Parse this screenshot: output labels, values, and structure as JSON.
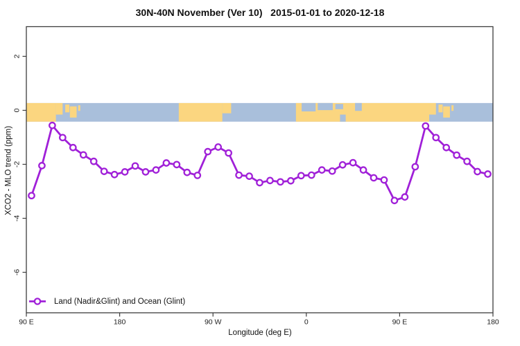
{
  "chart_data": {
    "type": "line",
    "title": "30N-40N November (Ver 10)   2015-01-01 to 2020-12-18",
    "xlabel": "Longitude (deg E)",
    "ylabel": "XCO2 - MLO trend (ppm)",
    "xlim": [
      90,
      540
    ],
    "ylim": [
      -7.5,
      3.1
    ],
    "grid": false,
    "x_ticks": [
      {
        "value": 90,
        "label": "90 E"
      },
      {
        "value": 180,
        "label": "180"
      },
      {
        "value": 270,
        "label": "90 W"
      },
      {
        "value": 360,
        "label": "0"
      },
      {
        "value": 450,
        "label": "90 E"
      },
      {
        "value": 540,
        "label": "180"
      }
    ],
    "y_ticks": [
      {
        "value": 2,
        "label": "2"
      },
      {
        "value": 0,
        "label": "0"
      },
      {
        "value": -2,
        "label": "-2"
      },
      {
        "value": -4,
        "label": "-4"
      },
      {
        "value": -6,
        "label": "-6"
      }
    ],
    "legend": [
      {
        "label": "Land (Nadir&Glint) and Ocean (Glint)",
        "color": "#A020D8",
        "marker": "open-circle",
        "position": "bottom-left"
      }
    ],
    "series": [
      {
        "name": "Land (Nadir&Glint) and Ocean (Glint)",
        "color": "#A020D8",
        "x": [
          95,
          105,
          115,
          125,
          135,
          145,
          155,
          165,
          175,
          185,
          195,
          205,
          215,
          225,
          235,
          245,
          255,
          265,
          275,
          285,
          295,
          305,
          315,
          325,
          335,
          345,
          355,
          365,
          375,
          385,
          395,
          405,
          415,
          425,
          435,
          445,
          455,
          465,
          475,
          485,
          495,
          505,
          515,
          525,
          535
        ],
        "y": [
          -3.16,
          -2.05,
          -0.56,
          -1.01,
          -1.38,
          -1.65,
          -1.89,
          -2.26,
          -2.38,
          -2.28,
          -2.06,
          -2.28,
          -2.21,
          -1.95,
          -2.01,
          -2.3,
          -2.41,
          -1.53,
          -1.36,
          -1.58,
          -2.4,
          -2.44,
          -2.68,
          -2.6,
          -2.65,
          -2.61,
          -2.42,
          -2.4,
          -2.21,
          -2.25,
          -2.02,
          -1.94,
          -2.21,
          -2.5,
          -2.58,
          -3.34,
          -3.21,
          -2.09,
          -0.58,
          -1.01,
          -1.38,
          -1.66,
          -1.89,
          -2.27,
          -2.36
        ]
      }
    ],
    "map_band": {
      "description": "land-ocean strip along longitude centered near 0 ppm",
      "top_value": 0.27,
      "bottom_value": -0.42,
      "ocean_color": "#A9BFDB",
      "land_color": "#FBD680",
      "land_segments": [
        {
          "x0": 90,
          "x1": 118.5,
          "f0": 0,
          "f1": 1
        },
        {
          "x0": 118.5,
          "x1": 125,
          "f0": 0,
          "f1": 0.62
        },
        {
          "x0": 127.5,
          "x1": 131.5,
          "f0": 0.08,
          "f1": 0.5
        },
        {
          "x0": 132,
          "x1": 138.5,
          "f0": 0.18,
          "f1": 0.78
        },
        {
          "x0": 140,
          "x1": 142,
          "f0": 0.12,
          "f1": 0.42
        },
        {
          "x0": 237,
          "x1": 279,
          "f0": 0,
          "f1": 1
        },
        {
          "x0": 279,
          "x1": 287.5,
          "f0": 0,
          "f1": 0.55
        },
        {
          "x0": 350,
          "x1": 478.5,
          "f0": 0,
          "f1": 1
        },
        {
          "x0": 478.5,
          "x1": 485,
          "f0": 0,
          "f1": 0.62
        },
        {
          "x0": 487.5,
          "x1": 491.5,
          "f0": 0.08,
          "f1": 0.5
        },
        {
          "x0": 492,
          "x1": 498.5,
          "f0": 0.18,
          "f1": 0.78
        },
        {
          "x0": 500,
          "x1": 502,
          "f0": 0.12,
          "f1": 0.42
        }
      ],
      "water_patches": [
        {
          "x0": 355.5,
          "x1": 369,
          "f0": 0,
          "f1": 0.45
        },
        {
          "x0": 371,
          "x1": 385.5,
          "f0": 0,
          "f1": 0.38
        },
        {
          "x0": 388,
          "x1": 395.5,
          "f0": 0.05,
          "f1": 0.33
        },
        {
          "x0": 392.5,
          "x1": 398,
          "f0": 0.62,
          "f1": 1
        },
        {
          "x0": 407,
          "x1": 413.5,
          "f0": 0,
          "f1": 0.42
        }
      ]
    }
  }
}
